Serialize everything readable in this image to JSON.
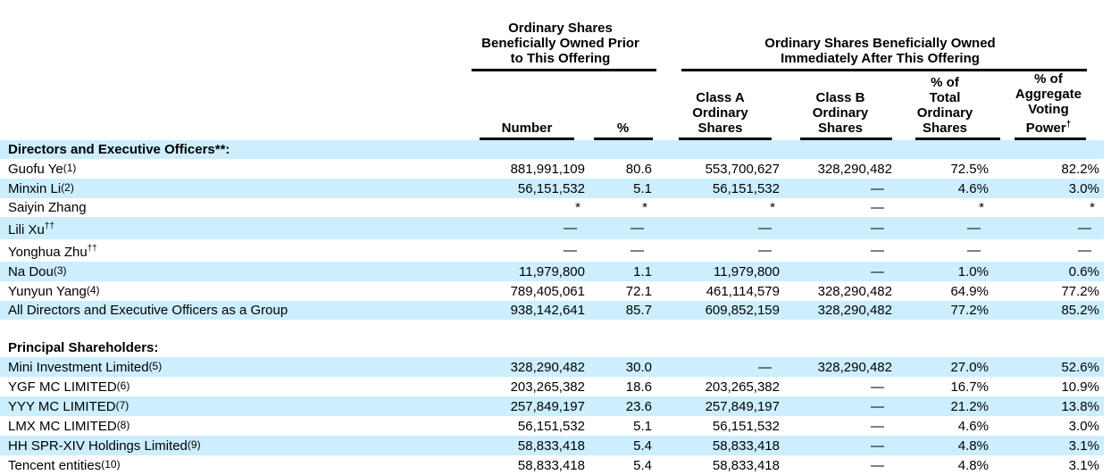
{
  "colors": {
    "row_highlight": "#cceeff",
    "rule": "#000000",
    "text": "#000000"
  },
  "table": {
    "group_headers": [
      {
        "id": "prior-offering",
        "lines": [
          "Ordinary Shares",
          "Beneficially Owned Prior",
          "to This Offering"
        ]
      },
      {
        "id": "after-offering",
        "lines": [
          "Ordinary Shares Beneficially Owned",
          "Immediately After This Offering"
        ]
      }
    ],
    "columns": [
      {
        "id": "number",
        "lines": [
          "Number"
        ]
      },
      {
        "id": "pct-prior",
        "lines": [
          "%"
        ]
      },
      {
        "id": "class-a",
        "lines": [
          "Class A",
          "Ordinary",
          "Shares"
        ]
      },
      {
        "id": "class-b",
        "lines": [
          "Class B",
          "Ordinary",
          "Shares"
        ]
      },
      {
        "id": "pct-total",
        "lines": [
          "% of",
          "Total",
          "Ordinary",
          "Shares"
        ]
      },
      {
        "id": "voting-power",
        "lines": [
          "% of",
          "Aggregate",
          "Voting"
        ],
        "last_line": "Power",
        "sup": "†"
      }
    ],
    "rows": [
      {
        "type": "section",
        "label": "Directors and Executive Officers**:",
        "shaded": true
      },
      {
        "type": "data",
        "name": "Guofu Ye",
        "fn": "(1)",
        "shaded": false,
        "cells": [
          "881,991,109",
          "80.6",
          "553,700,627",
          "328,290,482",
          "72.5%",
          "82.2%"
        ]
      },
      {
        "type": "data",
        "name": "Minxin Li",
        "fn": "(2)",
        "shaded": true,
        "cells": [
          "56,151,532",
          "5.1",
          "56,151,532",
          "—",
          "4.6%",
          "3.0%"
        ]
      },
      {
        "type": "data",
        "name": "Saiyin Zhang",
        "shaded": false,
        "cells": [
          "*",
          "*",
          "*",
          "—",
          "*",
          "*"
        ]
      },
      {
        "type": "data",
        "name": "Lili Xu",
        "sup": "††",
        "shaded": true,
        "cells": [
          "—",
          "—",
          "—",
          "—",
          "—",
          "—"
        ]
      },
      {
        "type": "data",
        "name": "Yonghua Zhu",
        "sup": "††",
        "shaded": false,
        "cells": [
          "—",
          "—",
          "—",
          "—",
          "—",
          "—"
        ]
      },
      {
        "type": "data",
        "name": "Na Dou",
        "fn": "(3)",
        "shaded": true,
        "cells": [
          "11,979,800",
          "1.1",
          "11,979,800",
          "—",
          "1.0%",
          "0.6%"
        ]
      },
      {
        "type": "data",
        "name": "Yunyun Yang",
        "fn": "(4)",
        "shaded": false,
        "cells": [
          "789,405,061",
          "72.1",
          "461,114,579",
          "328,290,482",
          "64.9%",
          "77.2%"
        ]
      },
      {
        "type": "data",
        "name": "All Directors and Executive Officers as a Group",
        "shaded": true,
        "cells": [
          "938,142,641",
          "85.7",
          "609,852,159",
          "328,290,482",
          "77.2%",
          "85.2%"
        ]
      },
      {
        "type": "spacer"
      },
      {
        "type": "section",
        "label": "Principal Shareholders:",
        "shaded": false
      },
      {
        "type": "data",
        "name": "Mini Investment Limited",
        "fn": "(5)",
        "shaded": true,
        "cells": [
          "328,290,482",
          "30.0",
          "—",
          "328,290,482",
          "27.0%",
          "52.6%"
        ]
      },
      {
        "type": "data",
        "name": "YGF MC LIMITED",
        "fn": "(6)",
        "shaded": false,
        "cells": [
          "203,265,382",
          "18.6",
          "203,265,382",
          "—",
          "16.7%",
          "10.9%"
        ]
      },
      {
        "type": "data",
        "name": "YYY MC LIMITED",
        "fn": "(7)",
        "shaded": true,
        "cells": [
          "257,849,197",
          "23.6",
          "257,849,197",
          "—",
          "21.2%",
          "13.8%"
        ]
      },
      {
        "type": "data",
        "name": "LMX MC LIMITED",
        "fn": "(8)",
        "shaded": false,
        "cells": [
          "56,151,532",
          "5.1",
          "56,151,532",
          "—",
          "4.6%",
          "3.0%"
        ]
      },
      {
        "type": "data",
        "name": "HH SPR-XIV Holdings Limited",
        "fn": "(9)",
        "shaded": true,
        "cells": [
          "58,833,418",
          "5.4",
          "58,833,418",
          "—",
          "4.8%",
          "3.1%"
        ]
      },
      {
        "type": "data",
        "name": "Tencent entities",
        "fn": "(10)",
        "shaded": false,
        "cells": [
          "58,833,418",
          "5.4",
          "58,833,418",
          "—",
          "4.8%",
          "3.1%"
        ]
      }
    ]
  }
}
